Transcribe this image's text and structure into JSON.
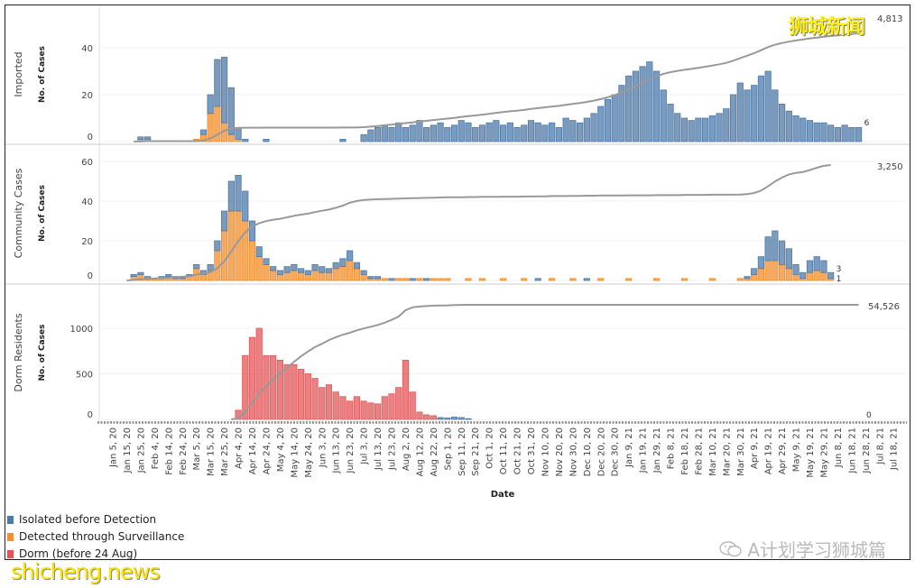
{
  "watermarks": {
    "top": "狮城新闻",
    "bottom": "shicheng.news",
    "wechat": "A计划学习狮城篇"
  },
  "legend": [
    {
      "label": "Isolated before Detection",
      "color": "#4e79a7"
    },
    {
      "label": "Detected through Surveillance",
      "color": "#f28e2b"
    },
    {
      "label": "Dorm (before 24 Aug)",
      "color": "#e15759"
    }
  ],
  "chart_data": {
    "type": "bar",
    "stacked": true,
    "xlabel": "Date",
    "x_start": "Jan 5, 20",
    "bin_days": 5,
    "note": "values are approximate daily cases per 5-day bin; line = cumulative total",
    "x_ticks": [
      "Jan 5, 20",
      "Jan 15, 20",
      "Jan 25, 20",
      "Feb 4, 20",
      "Feb 14, 20",
      "Feb 24, 20",
      "Mar 5, 20",
      "Mar 15, 20",
      "Mar 25, 20",
      "Apr 4, 20",
      "Apr 14, 20",
      "Apr 24, 20",
      "May 4, 20",
      "May 14, 20",
      "May 24, 20",
      "Jun 3, 20",
      "Jun 13, 20",
      "Jun 23, 20",
      "Jul 3, 20",
      "Jul 13, 20",
      "Jul 23, 20",
      "Aug 2, 20",
      "Aug 12, 20",
      "Aug 22, 20",
      "Sep 1, 20",
      "Sep 11, 20",
      "Sep 21, 20",
      "Oct 1, 20",
      "Oct 11, 20",
      "Oct 21, 20",
      "Oct 31, 20",
      "Nov 10, 20",
      "Nov 20, 20",
      "Nov 30, 20",
      "Dec 10, 20",
      "Dec 20, 20",
      "Dec 30, 20",
      "Jan 9, 21",
      "Jan 19, 21",
      "Jan 29, 21",
      "Feb 8, 21",
      "Feb 18, 21",
      "Feb 28, 21",
      "Mar 10, 21",
      "Mar 20, 21",
      "Mar 30, 21",
      "Apr 9, 21",
      "Apr 19, 21",
      "Apr 29, 21",
      "May 9, 21",
      "May 19, 21",
      "May 29, 21",
      "Jun 8, 21",
      "Jun 18, 21",
      "Jun 28, 21",
      "Jul 8, 21",
      "Jul 18, 21"
    ],
    "panels": [
      {
        "name": "Imported",
        "ylabel": "No. of Cases",
        "yticks": [
          0,
          20,
          40
        ],
        "cumulative_label": "4,813",
        "end_labels": [
          "6"
        ],
        "series": [
          {
            "name": "Detected through Surveillance",
            "color": "#f28e2b",
            "values": [
              0,
              0,
              0,
              0,
              1,
              1,
              0,
              0,
              0,
              0,
              0,
              0,
              1,
              3,
              12,
              15,
              8,
              3,
              1,
              0
            ]
          },
          {
            "name": "Isolated before Detection",
            "color": "#4e79a7",
            "values": [
              0,
              0,
              0,
              0,
              1,
              1,
              0,
              0,
              0,
              0,
              0,
              0,
              0,
              2,
              8,
              20,
              28,
              20,
              5,
              1,
              0,
              0,
              1,
              0,
              0,
              0,
              0,
              0,
              0,
              0,
              0,
              0,
              0,
              1,
              0,
              0,
              3,
              5,
              6,
              7,
              6,
              8,
              6,
              7,
              9,
              6,
              7,
              8,
              6,
              7,
              9,
              8,
              6,
              7,
              8,
              9,
              7,
              8,
              6,
              7,
              9,
              8,
              7,
              8,
              6,
              10,
              9,
              8,
              10,
              12,
              15,
              18,
              20,
              24,
              28,
              30,
              32,
              34,
              30,
              22,
              16,
              12,
              10,
              9,
              10,
              10,
              11,
              12,
              14,
              20,
              25,
              22,
              24,
              28,
              30,
              22,
              16,
              13,
              11,
              10,
              9,
              8,
              8,
              7,
              6,
              7,
              6,
              6
            ]
          }
        ]
      },
      {
        "name": "Community Cases",
        "ylabel": "No. of Cases",
        "yticks": [
          0,
          20,
          40,
          60
        ],
        "cumulative_label": "3,250",
        "end_labels": [
          "3",
          "1"
        ],
        "series": [
          {
            "name": "Detected through Surveillance",
            "color": "#f28e2b",
            "values": [
              0,
              0,
              0,
              2,
              3,
              1,
              1,
              1,
              2,
              1,
              1,
              2,
              6,
              3,
              5,
              15,
              25,
              35,
              35,
              30,
              20,
              12,
              8,
              5,
              3,
              4,
              5,
              4,
              3,
              5,
              4,
              4,
              6,
              7,
              10,
              6,
              3,
              1,
              1,
              1,
              0,
              1,
              1,
              0,
              1,
              0,
              1,
              1,
              1,
              0,
              0,
              1,
              0,
              1,
              0,
              0,
              1,
              0,
              0,
              1,
              0,
              0,
              0,
              1,
              0,
              0,
              1,
              0,
              0,
              0,
              1,
              0,
              0,
              0,
              1,
              0,
              0,
              0,
              1,
              0,
              0,
              0,
              1,
              0,
              0,
              0,
              1,
              0,
              0,
              0,
              1,
              1,
              3,
              6,
              10,
              10,
              8,
              6,
              3,
              1,
              4,
              5,
              4,
              1
            ]
          },
          {
            "name": "Isolated before Detection",
            "color": "#4e79a7",
            "values": [
              0,
              0,
              0,
              1,
              1,
              1,
              0,
              1,
              1,
              1,
              1,
              1,
              2,
              2,
              3,
              5,
              10,
              15,
              18,
              15,
              10,
              5,
              3,
              2,
              2,
              3,
              3,
              2,
              2,
              3,
              3,
              2,
              3,
              4,
              5,
              3,
              2,
              1,
              1,
              0,
              1,
              0,
              0,
              1,
              0,
              1,
              0,
              0,
              0,
              0,
              0,
              0,
              0,
              0,
              0,
              0,
              0,
              0,
              0,
              0,
              0,
              1,
              0,
              0,
              0,
              0,
              0,
              0,
              1,
              0,
              0,
              0,
              0,
              0,
              0,
              0,
              0,
              0,
              0,
              0,
              0,
              0,
              0,
              0,
              0,
              0,
              0,
              0,
              0,
              0,
              0,
              1,
              3,
              6,
              12,
              15,
              12,
              10,
              5,
              3,
              6,
              7,
              6,
              3
            ]
          }
        ]
      },
      {
        "name": "Dorm Residents",
        "ylabel": "No. of Cases",
        "yticks": [
          0,
          500,
          1000
        ],
        "cumulative_label": "54,526",
        "end_labels": [
          "0"
        ],
        "series": [
          {
            "name": "Dorm (before 24 Aug)",
            "color": "#e15759",
            "values": [
              0,
              0,
              0,
              0,
              0,
              0,
              0,
              0,
              0,
              0,
              0,
              0,
              0,
              0,
              0,
              0,
              0,
              0,
              100,
              700,
              900,
              1000,
              700,
              700,
              650,
              600,
              600,
              550,
              500,
              450,
              350,
              380,
              300,
              250,
              200,
              250,
              200,
              180,
              170,
              250,
              280,
              350,
              650,
              300,
              80,
              50,
              40
            ]
          },
          {
            "name": "Isolated before Detection",
            "color": "#4e79a7",
            "values": [
              0,
              0,
              0,
              0,
              0,
              0,
              0,
              0,
              0,
              0,
              0,
              0,
              0,
              0,
              0,
              0,
              0,
              0,
              0,
              0,
              0,
              0,
              0,
              0,
              0,
              0,
              0,
              0,
              0,
              0,
              0,
              0,
              0,
              0,
              0,
              0,
              0,
              0,
              0,
              0,
              0,
              0,
              0,
              0,
              0,
              0,
              0,
              20,
              15,
              25,
              20,
              8
            ]
          }
        ]
      }
    ]
  }
}
